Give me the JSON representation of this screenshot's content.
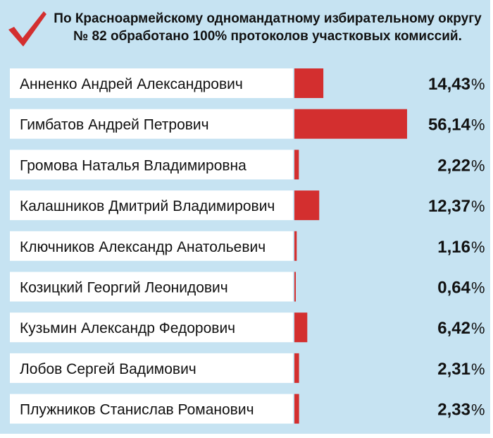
{
  "header": {
    "title_line1": "По Красноармейскому одномандатному избирательному округу",
    "title_line2": "№ 82 обработано 100% протоколов участковых комиссий."
  },
  "colors": {
    "background": "#c6e3f2",
    "bar": "#d32f2f",
    "checkmark": "#d32f2f",
    "row": "#ffffff"
  },
  "chart_data": {
    "type": "bar",
    "orientation": "horizontal",
    "categories": [
      "Анненко Андрей Александрович",
      "Гимбатов Андрей Петрович",
      "Громова Наталья Владимировна",
      "Калашников Дмитрий Владимирович",
      "Ключников Александр Анатольевич",
      "Козицкий Георгий Леонидович",
      "Кузьмин Александр Федорович",
      "Лобов Сергей Вадимович",
      "Плужников Станислав Романович"
    ],
    "values": [
      14.43,
      56.14,
      2.22,
      12.37,
      1.16,
      0.64,
      6.42,
      2.31,
      2.33
    ],
    "value_labels": [
      "14,43",
      "56,14",
      "2,22",
      "12,37",
      "1,16",
      "0,64",
      "6,42",
      "2,31",
      "2,33"
    ],
    "unit": "%",
    "xlim": [
      0,
      56.14
    ],
    "grid": false
  }
}
